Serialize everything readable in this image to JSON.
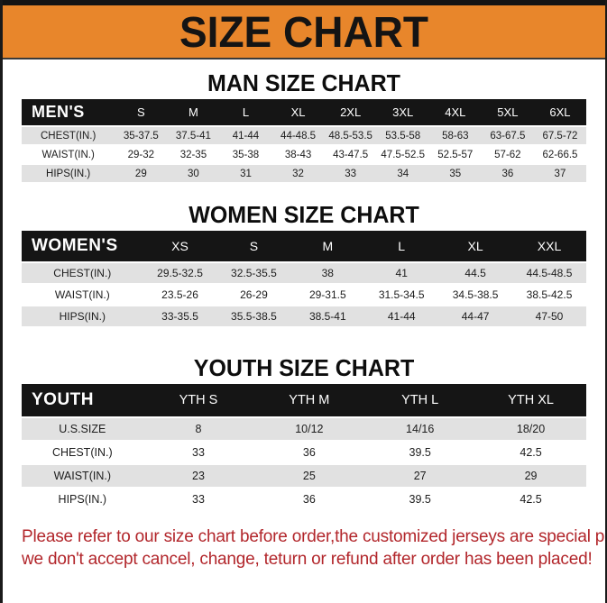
{
  "banner": {
    "title": "SIZE CHART",
    "bg_color": "#E8862B",
    "text_color": "#141414"
  },
  "sections": {
    "men": {
      "heading": "MAN SIZE CHART",
      "table": {
        "header_label": "MEN'S",
        "columns": [
          "S",
          "M",
          "L",
          "XL",
          "2XL",
          "3XL",
          "4XL",
          "5XL",
          "6XL"
        ],
        "rows": [
          {
            "label": "CHEST(IN.)",
            "values": [
              "35-37.5",
              "37.5-41",
              "41-44",
              "44-48.5",
              "48.5-53.5",
              "53.5-58",
              "58-63",
              "63-67.5",
              "67.5-72"
            ]
          },
          {
            "label": "WAIST(IN.)",
            "values": [
              "29-32",
              "32-35",
              "35-38",
              "38-43",
              "43-47.5",
              "47.5-52.5",
              "52.5-57",
              "57-62",
              "62-66.5"
            ]
          },
          {
            "label": "HIPS(IN.)",
            "values": [
              "29",
              "30",
              "31",
              "32",
              "33",
              "34",
              "35",
              "36",
              "37"
            ]
          }
        ]
      }
    },
    "women": {
      "heading": "WOMEN SIZE CHART",
      "table": {
        "header_label": "WOMEN'S",
        "columns": [
          "XS",
          "S",
          "M",
          "L",
          "XL",
          "XXL"
        ],
        "rows": [
          {
            "label": "CHEST(IN.)",
            "values": [
              "29.5-32.5",
              "32.5-35.5",
              "38",
              "41",
              "44.5",
              "44.5-48.5"
            ]
          },
          {
            "label": "WAIST(IN.)",
            "values": [
              "23.5-26",
              "26-29",
              "29-31.5",
              "31.5-34.5",
              "34.5-38.5",
              "38.5-42.5"
            ]
          },
          {
            "label": "HIPS(IN.)",
            "values": [
              "33-35.5",
              "35.5-38.5",
              "38.5-41",
              "41-44",
              "44-47",
              "47-50"
            ]
          }
        ]
      }
    },
    "youth": {
      "heading": "YOUTH SIZE CHART",
      "table": {
        "header_label": "YOUTH",
        "columns": [
          "YTH S",
          "YTH M",
          "YTH L",
          "YTH XL"
        ],
        "rows": [
          {
            "label": "U.S.SIZE",
            "values": [
              "8",
              "10/12",
              "14/16",
              "18/20"
            ]
          },
          {
            "label": "CHEST(IN.)",
            "values": [
              "33",
              "36",
              "39.5",
              "42.5"
            ]
          },
          {
            "label": "WAIST(IN.)",
            "values": [
              "23",
              "25",
              "27",
              "29"
            ]
          },
          {
            "label": "HIPS(IN.)",
            "values": [
              "33",
              "36",
              "39.5",
              "42.5"
            ]
          }
        ]
      }
    }
  },
  "footer": {
    "line1": "Please refer to our size chart before order,the customized jerseys are special products,",
    "line2": "we don't accept cancel, change, teturn or refund after order has been placed!",
    "text_color": "#B2262B"
  },
  "colors": {
    "banner_orange": "#E8862B",
    "table_header_black": "#151515",
    "row_gray": "#E1E1E1",
    "footer_red": "#B2262B"
  }
}
